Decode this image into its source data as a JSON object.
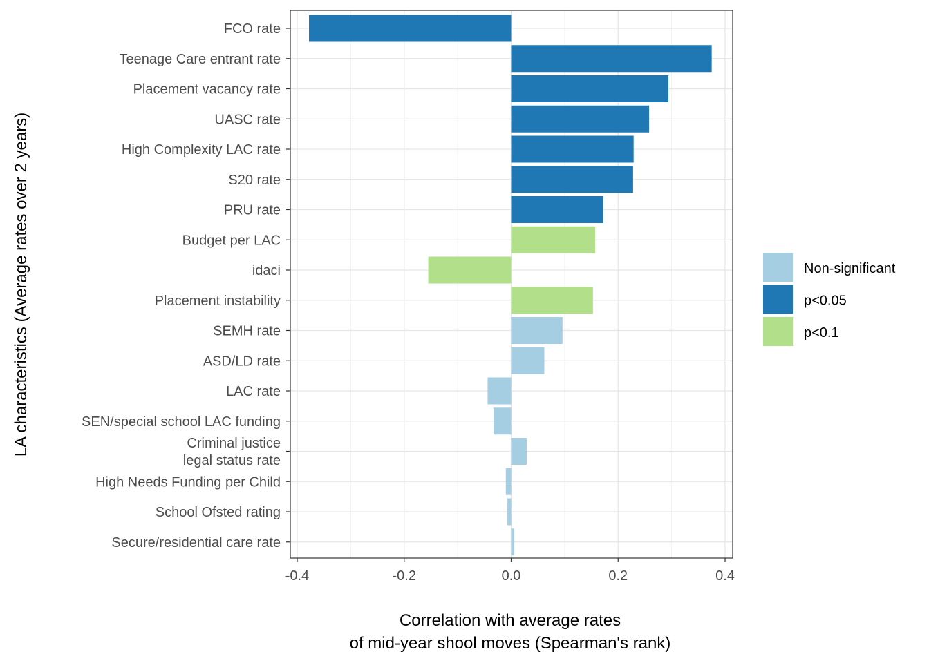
{
  "chart_data": {
    "type": "bar",
    "orientation": "horizontal",
    "xlabel": [
      "Correlation with average rates",
      "of mid-year shool moves (Spearman's rank)"
    ],
    "ylabel": "LA characteristics (Average rates over 2 years)",
    "xlim": [
      -0.4,
      0.4
    ],
    "x_ticks": [
      -0.4,
      -0.2,
      0.0,
      0.2,
      0.4
    ],
    "x_tick_labels": [
      "-0.4",
      "-0.2",
      "0.0",
      "0.2",
      "0.4"
    ],
    "grid": true,
    "legend_position": "right",
    "legend": [
      {
        "key": "ns",
        "label": "Non-significant",
        "color": "#a6cee3"
      },
      {
        "key": "p05",
        "label": "p<0.05",
        "color": "#1f78b4"
      },
      {
        "key": "p1",
        "label": "p<0.1",
        "color": "#b2df8a"
      }
    ],
    "bars": [
      {
        "label": [
          "FCO rate"
        ],
        "value": -0.378,
        "group": "p05"
      },
      {
        "label": [
          "Teenage Care entrant rate"
        ],
        "value": 0.375,
        "group": "p05"
      },
      {
        "label": [
          "Placement vacancy rate"
        ],
        "value": 0.294,
        "group": "p05"
      },
      {
        "label": [
          "UASC rate"
        ],
        "value": 0.258,
        "group": "p05"
      },
      {
        "label": [
          "High Complexity LAC rate"
        ],
        "value": 0.229,
        "group": "p05"
      },
      {
        "label": [
          "S20 rate"
        ],
        "value": 0.228,
        "group": "p05"
      },
      {
        "label": [
          "PRU rate"
        ],
        "value": 0.172,
        "group": "p05"
      },
      {
        "label": [
          "Budget per LAC"
        ],
        "value": 0.157,
        "group": "p1"
      },
      {
        "label": [
          "idaci"
        ],
        "value": -0.155,
        "group": "p1"
      },
      {
        "label": [
          "Placement instability"
        ],
        "value": 0.153,
        "group": "p1"
      },
      {
        "label": [
          "SEMH rate"
        ],
        "value": 0.096,
        "group": "ns"
      },
      {
        "label": [
          "ASD/LD rate"
        ],
        "value": 0.062,
        "group": "ns"
      },
      {
        "label": [
          "LAC rate"
        ],
        "value": -0.044,
        "group": "ns"
      },
      {
        "label": [
          "SEN/special school LAC funding"
        ],
        "value": -0.033,
        "group": "ns"
      },
      {
        "label": [
          "Criminal justice",
          "legal status rate"
        ],
        "value": 0.029,
        "group": "ns"
      },
      {
        "label": [
          "High Needs Funding per Child"
        ],
        "value": -0.01,
        "group": "ns"
      },
      {
        "label": [
          "School Ofsted rating"
        ],
        "value": -0.007,
        "group": "ns"
      },
      {
        "label": [
          "Secure/residential care rate"
        ],
        "value": 0.006,
        "group": "ns"
      }
    ]
  }
}
